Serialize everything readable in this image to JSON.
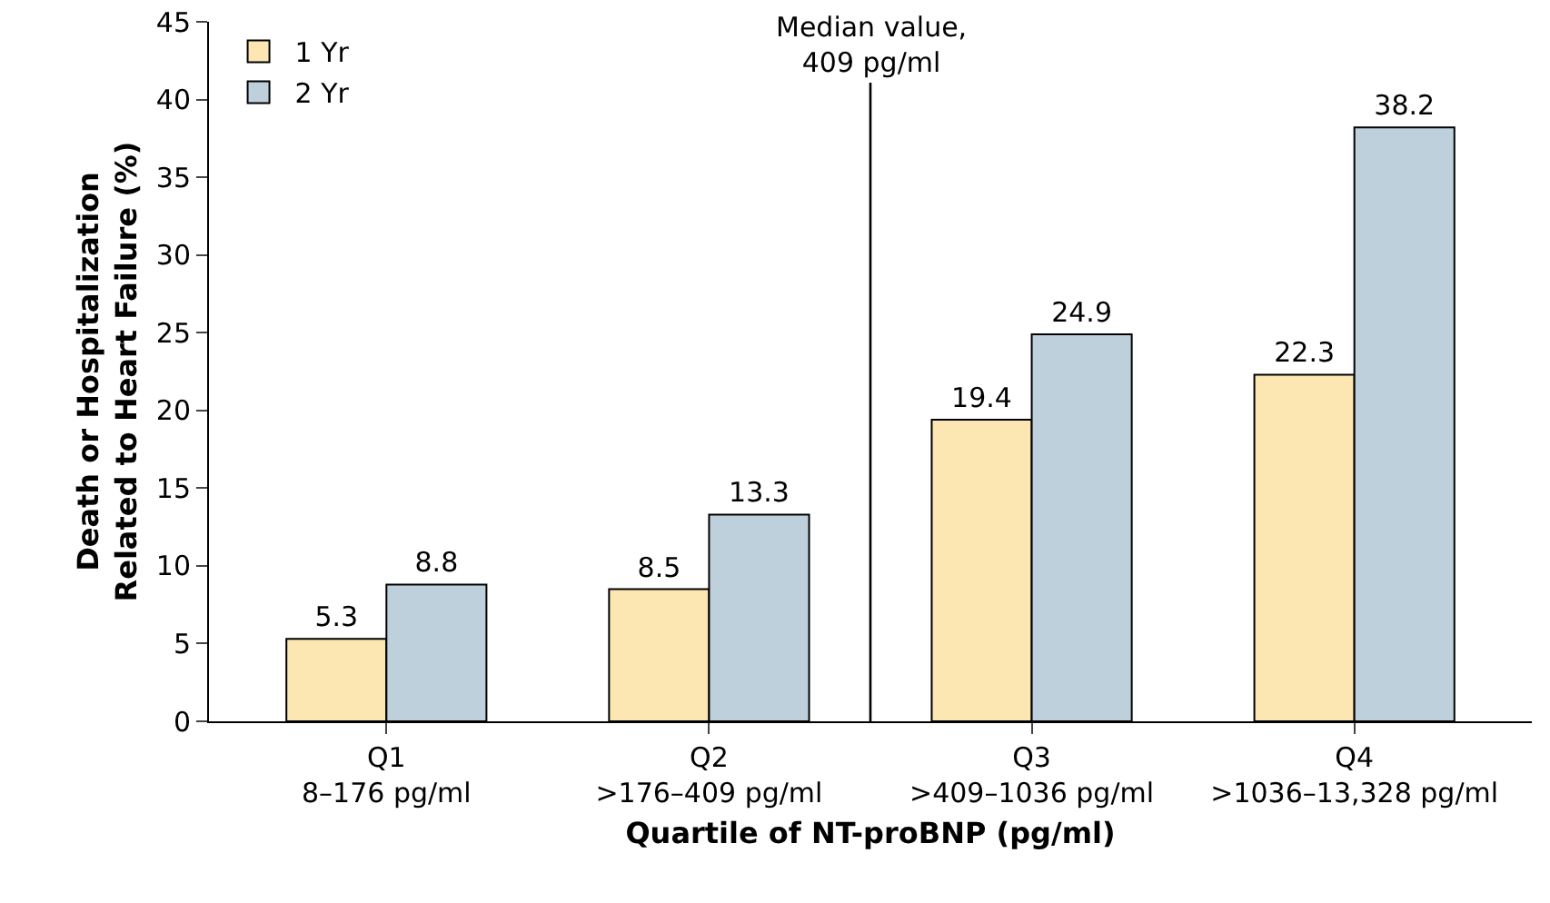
{
  "chart_data": {
    "type": "bar",
    "xlabel": "Quartile of NT-proBNP (pg/ml)",
    "ylabel": "Death or Hospitalization\nRelated to Heart Failure (%)",
    "categories": [
      "Q1\n8–176 pg/ml",
      "Q2\n>176–409 pg/ml",
      "Q3\n>409–1036 pg/ml",
      "Q4\n>1036–13,328 pg/ml"
    ],
    "series": [
      {
        "name": "1 Yr",
        "color": "#fce6b2",
        "values": [
          5.3,
          8.5,
          19.4,
          22.3
        ]
      },
      {
        "name": "2 Yr",
        "color": "#bfd0dd",
        "values": [
          8.8,
          13.3,
          24.9,
          38.2
        ]
      }
    ],
    "ylim": [
      0,
      45
    ],
    "yticks": [
      0,
      5,
      10,
      15,
      20,
      25,
      30,
      35,
      40,
      45
    ],
    "grid": false,
    "legend": "top left",
    "data_labels": true,
    "annotations": [
      "Median value,\n409 pg/ml"
    ]
  }
}
